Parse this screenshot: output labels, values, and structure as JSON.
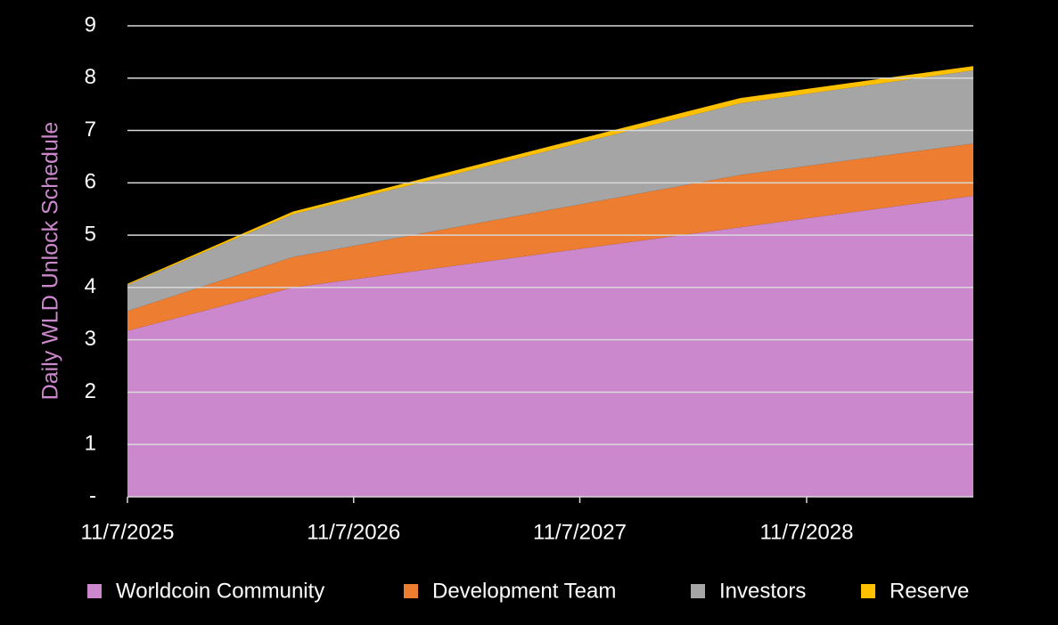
{
  "chart_data": {
    "type": "stacked-area",
    "y_label": "Daily WLD Unlock Schedule",
    "x": [
      "2025-11-07",
      "2026-08-01",
      "2028-07-23",
      "2029-08-03"
    ],
    "xlim": [
      "2025-11-07",
      "2029-08-03"
    ],
    "xticks": [
      {
        "value": "2025-11-07",
        "label": "11/7/2025"
      },
      {
        "value": "2026-11-07",
        "label": "11/7/2026"
      },
      {
        "value": "2027-11-07",
        "label": "11/7/2027"
      },
      {
        "value": "2028-11-07",
        "label": "11/7/2028"
      }
    ],
    "ylim": [
      0,
      9
    ],
    "yticks": [
      {
        "value": 0,
        "label": "-"
      },
      1,
      2,
      3,
      4,
      5,
      6,
      7,
      8,
      9
    ],
    "grid": true,
    "legend": "bottom",
    "series": [
      {
        "name": "Worldcoin Community",
        "color": "#cc88cc",
        "values": [
          3.17,
          4.0,
          5.15,
          5.75
        ]
      },
      {
        "name": "Development Team",
        "color": "#ed7d31",
        "values": [
          0.38,
          0.58,
          1.0,
          1.0
        ]
      },
      {
        "name": "Investors",
        "color": "#a5a5a5",
        "values": [
          0.5,
          0.82,
          1.37,
          1.4
        ]
      },
      {
        "name": "Reserve",
        "color": "#ffc000",
        "values": [
          0.02,
          0.05,
          0.1,
          0.08
        ]
      }
    ]
  }
}
